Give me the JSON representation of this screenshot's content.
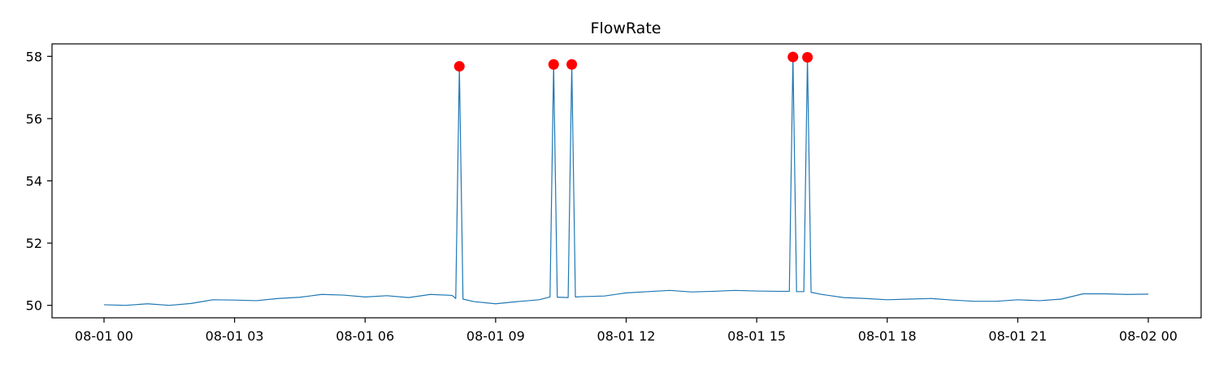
{
  "chart_data": {
    "type": "line",
    "title": "FlowRate",
    "xlabel": "",
    "ylabel": "",
    "x_ticks": [
      "08-01 00",
      "08-01 03",
      "08-01 06",
      "08-01 09",
      "08-01 12",
      "08-01 15",
      "08-01 18",
      "08-01 21",
      "08-02 00"
    ],
    "y_ticks": [
      "50",
      "52",
      "54",
      "56",
      "58"
    ],
    "xlim": [
      "2023-08-01T00:00",
      "2023-08-02T00:00"
    ],
    "ylim": [
      49.6,
      58.4
    ],
    "grid": false,
    "legend": "none",
    "series": [
      {
        "color": "#1f77b4",
        "x": [
          "2023-08-01T00:00",
          "2023-08-01T00:30",
          "2023-08-01T01:00",
          "2023-08-01T01:30",
          "2023-08-01T02:00",
          "2023-08-01T02:30",
          "2023-08-01T03:00",
          "2023-08-01T03:30",
          "2023-08-01T04:00",
          "2023-08-01T04:30",
          "2023-08-01T05:00",
          "2023-08-01T05:30",
          "2023-08-01T06:00",
          "2023-08-01T06:30",
          "2023-08-01T07:00",
          "2023-08-01T07:30",
          "2023-08-01T08:00",
          "2023-08-01T08:05",
          "2023-08-01T08:10",
          "2023-08-01T08:15",
          "2023-08-01T08:30",
          "2023-08-01T09:00",
          "2023-08-01T09:30",
          "2023-08-01T10:00",
          "2023-08-01T10:15",
          "2023-08-01T10:20",
          "2023-08-01T10:25",
          "2023-08-01T10:30",
          "2023-08-01T10:40",
          "2023-08-01T10:45",
          "2023-08-01T10:50",
          "2023-08-01T11:00",
          "2023-08-01T11:30",
          "2023-08-01T12:00",
          "2023-08-01T12:30",
          "2023-08-01T13:00",
          "2023-08-01T13:30",
          "2023-08-01T14:00",
          "2023-08-01T14:30",
          "2023-08-01T15:00",
          "2023-08-01T15:30",
          "2023-08-01T15:45",
          "2023-08-01T15:50",
          "2023-08-01T15:55",
          "2023-08-01T16:05",
          "2023-08-01T16:10",
          "2023-08-01T16:15",
          "2023-08-01T16:30",
          "2023-08-01T17:00",
          "2023-08-01T17:30",
          "2023-08-01T18:00",
          "2023-08-01T18:30",
          "2023-08-01T19:00",
          "2023-08-01T19:30",
          "2023-08-01T20:00",
          "2023-08-01T20:30",
          "2023-08-01T21:00",
          "2023-08-01T21:30",
          "2023-08-01T22:00",
          "2023-08-01T22:30",
          "2023-08-01T23:00",
          "2023-08-01T23:30",
          "2023-08-02T00:00"
        ],
        "values": [
          50.02,
          50.0,
          50.05,
          50.0,
          50.06,
          50.18,
          50.17,
          50.15,
          50.22,
          50.26,
          50.35,
          50.33,
          50.27,
          50.31,
          50.25,
          50.35,
          50.32,
          50.22,
          57.68,
          50.2,
          50.12,
          50.05,
          50.12,
          50.18,
          50.27,
          57.74,
          50.26,
          50.26,
          50.25,
          57.74,
          50.27,
          50.28,
          50.3,
          50.4,
          50.44,
          50.48,
          50.43,
          50.45,
          50.48,
          50.46,
          50.45,
          50.45,
          57.98,
          50.44,
          50.44,
          57.97,
          50.42,
          50.35,
          50.25,
          50.22,
          50.18,
          50.2,
          50.22,
          50.17,
          50.13,
          50.13,
          50.18,
          50.15,
          50.2,
          50.37,
          50.37,
          50.35,
          50.36
        ]
      }
    ],
    "anomalies": {
      "color": "#ff0000",
      "x": [
        "2023-08-01T08:10",
        "2023-08-01T10:20",
        "2023-08-01T10:45",
        "2023-08-01T15:50",
        "2023-08-01T16:10"
      ],
      "values": [
        57.68,
        57.74,
        57.74,
        57.98,
        57.97
      ]
    }
  }
}
